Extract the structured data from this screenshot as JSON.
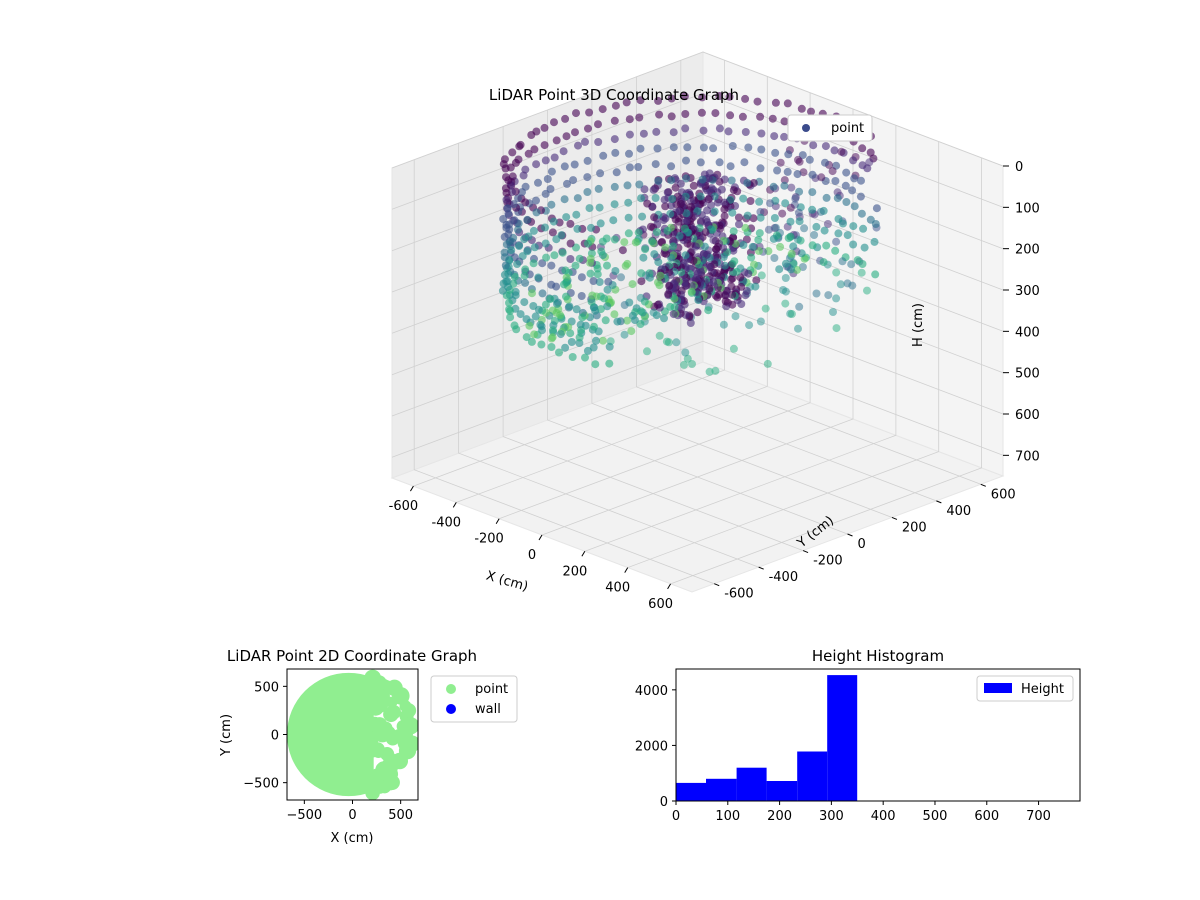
{
  "chart_data": [
    {
      "type": "scatter3d",
      "title": "LiDAR Point 3D Coordinate Graph",
      "xlabel": "X (cm)",
      "ylabel": "Y (cm)",
      "zlabel": "H (cm)",
      "xlim": [
        -700,
        700
      ],
      "ylim": [
        -700,
        700
      ],
      "zlim": [
        750,
        0
      ],
      "xticks": [
        -600,
        -400,
        -200,
        0,
        200,
        400,
        600
      ],
      "yticks": [
        -600,
        -400,
        -200,
        0,
        200,
        400,
        600
      ],
      "zticks": [
        0,
        100,
        200,
        300,
        400,
        500,
        600,
        700
      ],
      "grid": true,
      "legend": {
        "position": "top-right",
        "entries": [
          {
            "label": "point",
            "color": "#3b4b8c"
          }
        ]
      },
      "colormap": "viridis",
      "point_cloud": {
        "wall_radius": 620,
        "height_range": [
          0,
          350
        ],
        "open_side_x_min": 150,
        "description_values": {
          "inner_height": 300,
          "wall_top_height": 0,
          "wall_bottom_height": 350
        }
      }
    },
    {
      "type": "scatter",
      "title": "LiDAR Point 2D Coordinate Graph",
      "xlabel": "X (cm)",
      "ylabel": "Y (cm)",
      "xlim": [
        -680,
        680
      ],
      "ylim": [
        -680,
        680
      ],
      "xticks": [
        -500,
        0,
        500
      ],
      "yticks": [
        -500,
        0,
        500
      ],
      "legend": {
        "position": "outside-right",
        "entries": [
          {
            "label": "point",
            "color": "#90ee90"
          },
          {
            "label": "wall",
            "color": "#0000ff"
          }
        ]
      },
      "point_cloud": {
        "radius": 640,
        "fill_color": "#90ee90"
      }
    },
    {
      "type": "histogram",
      "title": "Height Histogram",
      "xlabel": "",
      "ylabel": "",
      "xlim": [
        0,
        780
      ],
      "ylim": [
        0,
        4750
      ],
      "xticks": [
        0,
        100,
        200,
        300,
        400,
        500,
        600,
        700
      ],
      "yticks": [
        0,
        2000,
        4000
      ],
      "bin_edges": [
        0,
        58,
        117,
        175,
        234,
        292,
        350
      ],
      "counts": [
        650,
        800,
        1200,
        720,
        1780,
        4530
      ],
      "color": "#0000ff",
      "legend": {
        "position": "top-right",
        "entries": [
          {
            "label": "Height",
            "color": "#0000ff"
          }
        ]
      }
    }
  ]
}
